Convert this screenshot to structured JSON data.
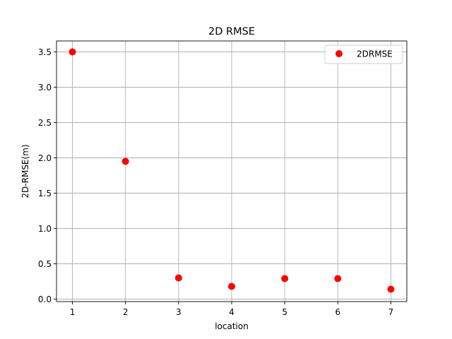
{
  "chart_data": {
    "type": "scatter",
    "title": "2D RMSE",
    "xlabel": "location",
    "ylabel": "2D-RMSE(m)",
    "x": [
      1,
      2,
      3,
      4,
      5,
      6,
      7
    ],
    "series": [
      {
        "name": "2DRMSE",
        "values": [
          3.5,
          1.95,
          0.3,
          0.18,
          0.29,
          0.29,
          0.14
        ],
        "color": "#ff0000"
      }
    ],
    "xlim": [
      0.7,
      7.3
    ],
    "ylim": [
      -0.035,
      3.655
    ],
    "xticks": [
      "1",
      "2",
      "3",
      "4",
      "5",
      "6",
      "7"
    ],
    "yticks": [
      "0.0",
      "0.5",
      "1.0",
      "1.5",
      "2.0",
      "2.5",
      "3.0",
      "3.5"
    ],
    "grid": true,
    "legend": "top-right"
  }
}
